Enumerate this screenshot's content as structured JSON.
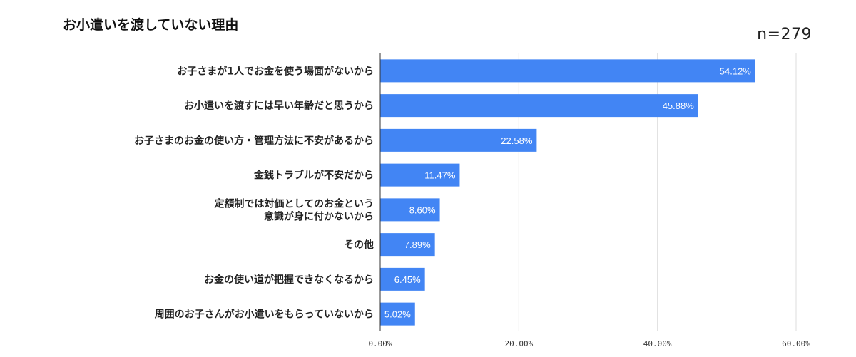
{
  "header": {
    "title": "お小遣いを渡していない理由",
    "sample_note": "n=279"
  },
  "chart_data": {
    "type": "bar",
    "orientation": "horizontal",
    "title": "お小遣いを渡していない理由",
    "xlabel": "",
    "ylabel": "",
    "xlim": [
      0,
      60
    ],
    "x_ticks": [
      "0.00%",
      "20.00%",
      "40.00%",
      "60.00%"
    ],
    "grid": true,
    "categories": [
      "お子さまが1人でお金を使う場面がないから",
      "お小遣いを渡すには早い年齢だと思うから",
      "お子さまのお金の使い方・管理方法に不安があるから",
      "金銭トラブルが不安だから",
      "定額制では対価としてのお金という\n意識が身に付かないから",
      "その他",
      "お金の使い道が把握できなくなるから",
      "周囲のお子さんがお小遣いをもらっていないから"
    ],
    "values": [
      54.12,
      45.88,
      22.58,
      11.47,
      8.6,
      7.89,
      6.45,
      5.02
    ],
    "data_labels": [
      "54.12%",
      "45.88%",
      "22.58%",
      "11.47%",
      "8.60%",
      "7.89%",
      "6.45%",
      "5.02%"
    ],
    "bar_color": "#4285f4",
    "label_color": "#ffffff"
  }
}
